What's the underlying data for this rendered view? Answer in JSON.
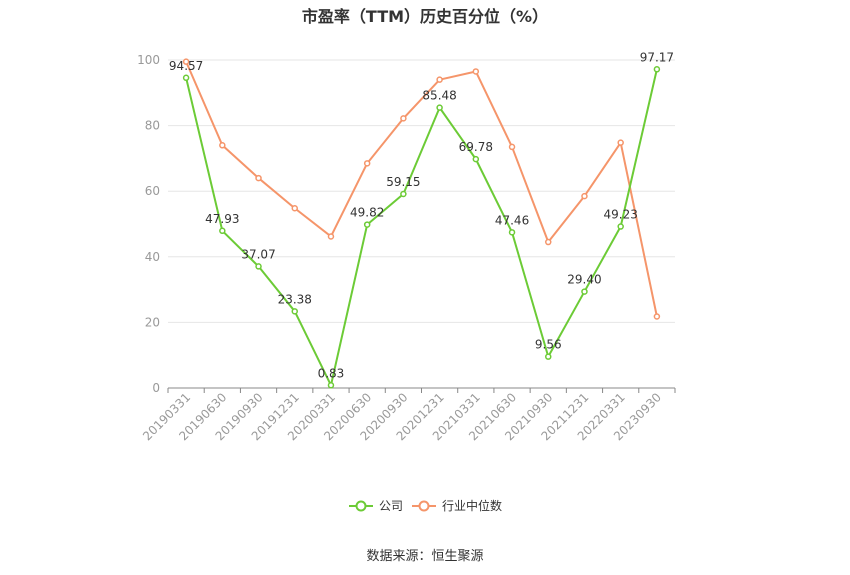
{
  "title": "市盈率（TTM）历史百分位（%）",
  "source": "数据来源：恒生聚源",
  "chart_data": {
    "type": "line",
    "title": "市盈率（TTM）历史百分位（%）",
    "xlabel": "",
    "ylabel": "",
    "ylim": [
      0,
      100
    ],
    "yticks": [
      0,
      20,
      40,
      60,
      80,
      100
    ],
    "grid": true,
    "legend_position": "bottom",
    "categories": [
      "20190331",
      "20190630",
      "20190930",
      "20191231",
      "20200331",
      "20200630",
      "20200930",
      "20201231",
      "20210331",
      "20210630",
      "20210930",
      "20211231",
      "20220331",
      "20230930"
    ],
    "series": [
      {
        "name": "公司",
        "color": "#6ccb36",
        "values": [
          94.57,
          47.93,
          37.07,
          23.38,
          0.83,
          49.82,
          59.15,
          85.48,
          69.78,
          47.46,
          9.56,
          29.4,
          49.23,
          97.17
        ],
        "labels": [
          "94.57",
          "47.93",
          "37.07",
          "23.38",
          "0.83",
          "49.82",
          "59.15",
          "85.48",
          "69.78",
          "47.46",
          "9.56",
          "29.40",
          "49.23",
          "97.17"
        ]
      },
      {
        "name": "行业中位数",
        "color": "#f5956a",
        "values": [
          99.5,
          74.0,
          64.0,
          54.8,
          46.2,
          68.5,
          82.2,
          94.0,
          96.5,
          73.5,
          44.5,
          58.5,
          74.8,
          21.8
        ]
      }
    ]
  }
}
